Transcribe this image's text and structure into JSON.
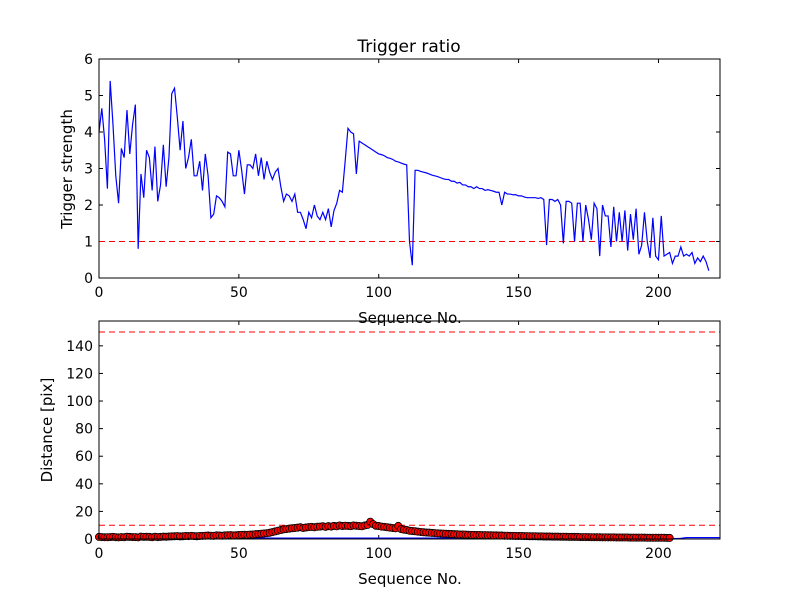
{
  "chart_data": [
    {
      "type": "line",
      "title": "Trigger ratio",
      "xlabel": "Sequence No.",
      "ylabel": "Trigger strength",
      "xlim": [
        0,
        222
      ],
      "ylim": [
        0,
        6
      ],
      "xticks": [
        0,
        50,
        100,
        150,
        200
      ],
      "yticks": [
        0,
        1,
        2,
        3,
        4,
        5,
        6
      ],
      "grid": false,
      "colors": {
        "line": "#0000ff",
        "threshold": "#ff0000"
      },
      "threshold": 1,
      "series": [
        {
          "values": [
            4.0,
            4.65,
            3.8,
            2.45,
            5.4,
            4.2,
            2.8,
            2.05,
            3.55,
            3.3,
            4.6,
            3.4,
            4.2,
            4.75,
            0.8,
            2.85,
            2.2,
            3.5,
            3.3,
            2.4,
            3.6,
            2.1,
            2.55,
            3.65,
            2.5,
            3.3,
            5.05,
            5.2,
            4.4,
            3.5,
            4.3,
            3.0,
            3.3,
            3.8,
            2.8,
            2.8,
            3.2,
            2.4,
            3.4,
            2.8,
            1.65,
            1.75,
            2.25,
            2.2,
            2.1,
            1.95,
            3.45,
            3.4,
            2.8,
            2.8,
            3.5,
            2.95,
            2.3,
            3.1,
            3.1,
            3.0,
            3.4,
            2.8,
            3.3,
            2.7,
            3.2,
            2.9,
            2.7,
            2.9,
            3.0,
            2.5,
            2.1,
            2.3,
            2.25,
            2.1,
            2.3,
            1.8,
            1.8,
            1.6,
            1.35,
            1.8,
            1.65,
            2.0,
            1.7,
            1.6,
            1.8,
            1.6,
            1.9,
            1.4,
            1.85,
            2.05,
            2.4,
            2.35,
            3.2,
            4.1,
            4.0,
            3.95,
            2.85,
            3.75,
            3.7,
            3.65,
            3.6,
            3.55,
            3.5,
            3.45,
            3.4,
            3.38,
            3.35,
            3.3,
            3.28,
            3.25,
            3.2,
            3.18,
            3.15,
            3.12,
            3.1,
            1.0,
            0.35,
            2.95,
            2.95,
            2.92,
            2.9,
            2.88,
            2.85,
            2.82,
            2.8,
            2.78,
            2.75,
            2.72,
            2.7,
            2.7,
            2.65,
            2.65,
            2.6,
            2.62,
            2.55,
            2.55,
            2.5,
            2.5,
            2.45,
            2.5,
            2.45,
            2.45,
            2.4,
            2.42,
            2.4,
            2.38,
            2.35,
            2.35,
            2.0,
            2.35,
            2.3,
            2.3,
            2.28,
            2.28,
            2.25,
            2.25,
            2.22,
            2.2,
            2.2,
            2.2,
            2.2,
            2.18,
            2.2,
            2.15,
            0.9,
            2.15,
            2.15,
            2.1,
            2.15,
            2.0,
            0.95,
            2.1,
            2.1,
            2.05,
            1.0,
            2.05,
            2.05,
            1.0,
            2.0,
            1.6,
            1.05,
            2.05,
            1.9,
            0.6,
            2.0,
            1.7,
            1.7,
            0.85,
            1.95,
            1.0,
            1.8,
            1.0,
            1.85,
            0.75,
            1.75,
            1.05,
            1.9,
            0.65,
            0.9,
            1.8,
            1.0,
            0.55,
            1.65,
            0.6,
            0.5,
            1.7,
            0.6,
            0.65,
            0.7,
            0.4,
            0.6,
            0.6,
            0.85,
            0.6,
            0.65,
            0.6,
            0.7,
            0.4,
            0.55,
            0.45,
            0.6,
            0.45,
            0.2
          ]
        }
      ]
    },
    {
      "type": "scatter",
      "title": "",
      "xlabel": "Sequence No.",
      "ylabel": "Distance [pix]",
      "xlim": [
        0,
        222
      ],
      "ylim": [
        0,
        158
      ],
      "xticks": [
        0,
        50,
        100,
        150,
        200
      ],
      "yticks": [
        0,
        20,
        40,
        60,
        80,
        100,
        120,
        140
      ],
      "grid": false,
      "colors": {
        "marker": "#ff0000",
        "marker_edge": "#000000",
        "line": "#0000ff",
        "threshold": "#ff0000"
      },
      "thresholds": [
        10,
        150
      ],
      "series": [
        {
          "values": [
            1.5,
            1.4,
            1.3,
            1.3,
            1.4,
            1.5,
            1.3,
            1.2,
            1.4,
            1.3,
            1.6,
            1.5,
            1.4,
            1.4,
            1.2,
            1.7,
            1.5,
            1.6,
            1.5,
            1.3,
            1.6,
            1.4,
            1.5,
            1.7,
            1.6,
            1.8,
            1.9,
            2.0,
            2.1,
            1.9,
            2.0,
            2.2,
            2.1,
            2.3,
            2.1,
            2.0,
            2.2,
            2.3,
            2.4,
            2.5,
            2.4,
            2.3,
            2.6,
            2.5,
            2.4,
            2.6,
            2.7,
            2.8,
            2.6,
            2.7,
            2.9,
            3.0,
            3.1,
            3.0,
            3.2,
            3.3,
            3.5,
            3.6,
            3.8,
            4.0,
            4.2,
            4.5,
            5.0,
            5.5,
            6.0,
            6.5,
            7.0,
            7.2,
            7.5,
            7.8,
            8.0,
            8.2,
            8.5,
            8.0,
            8.3,
            8.6,
            8.8,
            8.5,
            8.9,
            9.0,
            9.2,
            8.8,
            9.3,
            9.0,
            9.5,
            9.2,
            9.8,
            9.4,
            9.6,
            9.5,
            9.3,
            9.8,
            9.6,
            9.4,
            9.2,
            9.8,
            10.2,
            12.5,
            10.8,
            9.6,
            9.4,
            9.0,
            8.8,
            8.5,
            8.2,
            8.0,
            7.8,
            9.5,
            7.2,
            6.8,
            6.5,
            6.0,
            5.8,
            5.6,
            5.3,
            5.1,
            4.9,
            4.7,
            4.6,
            4.4,
            4.3,
            4.1,
            4.0,
            3.9,
            3.8,
            3.7,
            3.6,
            3.5,
            3.4,
            3.3,
            3.3,
            3.2,
            3.1,
            3.0,
            3.0,
            2.9,
            2.9,
            2.8,
            2.8,
            2.7,
            2.7,
            2.6,
            2.6,
            2.5,
            2.5,
            2.4,
            2.4,
            2.3,
            2.3,
            2.2,
            2.2,
            2.2,
            2.1,
            2.1,
            2.0,
            2.0,
            2.0,
            1.9,
            1.9,
            1.8,
            1.8,
            1.8,
            1.7,
            1.7,
            1.7,
            1.6,
            1.6,
            1.6,
            1.5,
            1.5,
            1.5,
            1.5,
            1.4,
            1.4,
            1.4,
            1.4,
            1.3,
            1.3,
            1.3,
            1.3,
            1.2,
            1.2,
            1.2,
            1.2,
            1.2,
            1.1,
            1.1,
            1.1,
            1.1,
            1.1,
            1.0,
            1.0,
            1.0,
            1.0,
            1.0,
            1.0,
            0.9,
            0.9,
            0.9,
            0.9,
            0.9,
            0.9,
            0.9,
            0.8,
            0.8
          ]
        }
      ],
      "line_series": [
        {
          "x": [
            0,
            203,
            204,
            206,
            208,
            210,
            214,
            218,
            222
          ],
          "values": [
            0.6,
            0.7,
            0.5,
            0.3,
            0.5,
            1.0,
            1.0,
            1.0,
            1.0
          ]
        }
      ]
    }
  ]
}
